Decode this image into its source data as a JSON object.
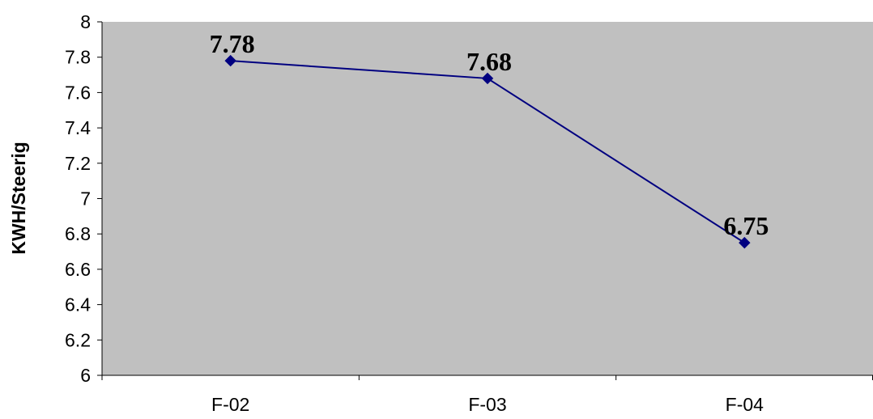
{
  "chart_data": {
    "type": "line",
    "title": "",
    "xlabel": "",
    "ylabel": "KWH/Steerig",
    "categories": [
      "F-02",
      "F-03",
      "F-04"
    ],
    "series": [
      {
        "values": [
          7.78,
          7.68,
          6.75
        ],
        "data_labels": [
          "7.78",
          "7.68",
          "6.75"
        ],
        "color": "#000080",
        "marker": "diamond"
      }
    ],
    "ylim": [
      6,
      8
    ],
    "yticks": [
      "6",
      "6.2",
      "6.4",
      "6.6",
      "6.8",
      "7",
      "7.2",
      "7.4",
      "7.6",
      "7.8",
      "8"
    ],
    "grid": false,
    "legend": "none",
    "plot_background": "#c0c0c0"
  }
}
